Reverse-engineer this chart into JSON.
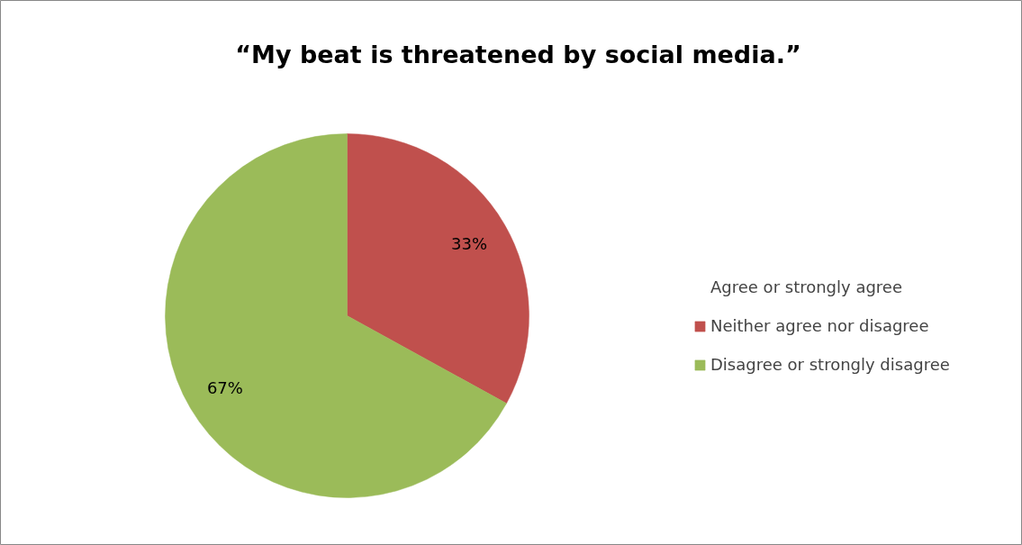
{
  "chart_data": {
    "type": "pie",
    "title": "“My beat is threatened by social media.”",
    "categories": [
      "Agree or strongly agree",
      "Neither agree nor disagree",
      "Disagree or strongly disagree"
    ],
    "values": [
      0,
      33,
      67
    ],
    "colors": [
      "#4f81bd",
      "#c0504d",
      "#9bbb59"
    ],
    "value_labels": [
      null,
      "33%",
      "67%"
    ],
    "legend": "right"
  }
}
